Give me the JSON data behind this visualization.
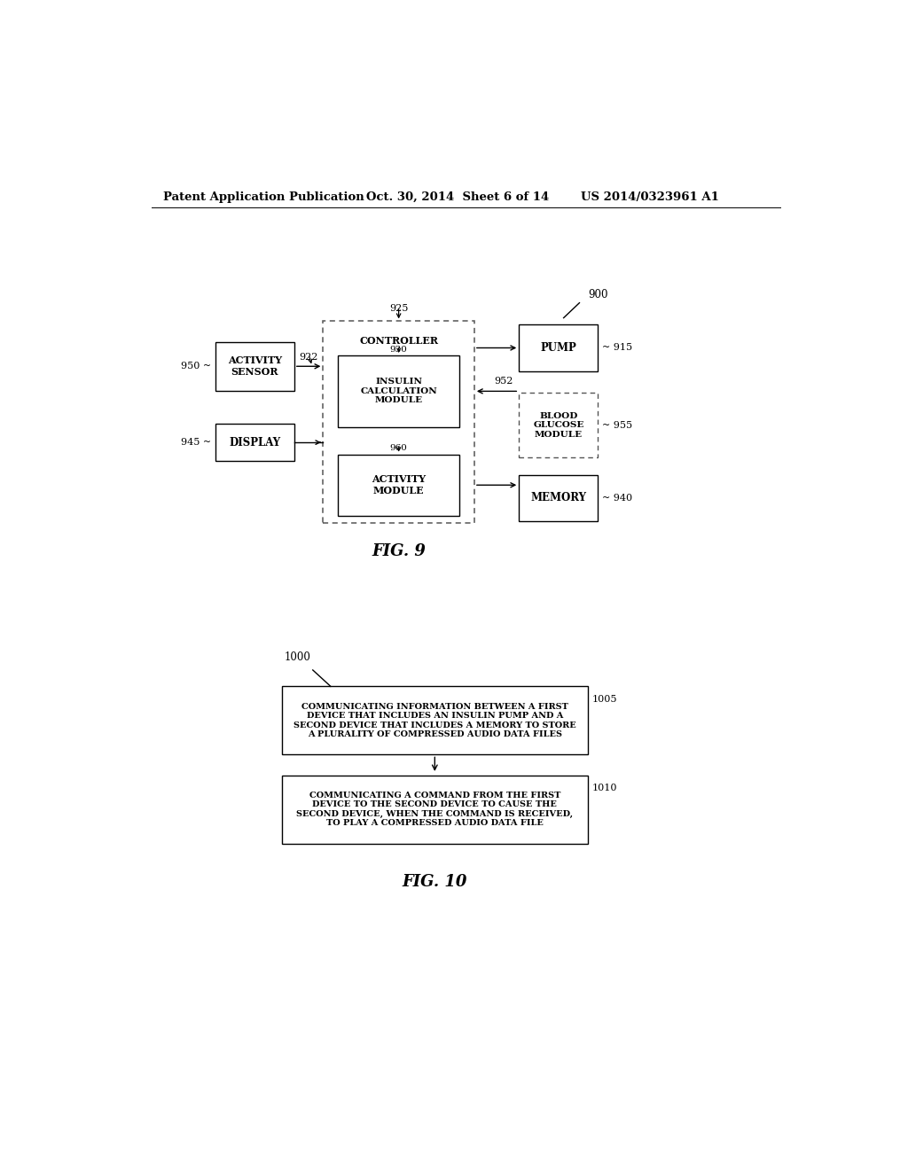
{
  "bg_color": "#ffffff",
  "header_left": "Patent Application Publication",
  "header_mid": "Oct. 30, 2014  Sheet 6 of 14",
  "header_right": "US 2014/0323961 A1",
  "fig9_label": "FIG. 9",
  "fig10_label": "FIG. 10",
  "ref_900": "900",
  "ref_925": "925",
  "ref_930": "930",
  "ref_960": "960",
  "ref_915": "915",
  "ref_940": "940",
  "ref_950": "950",
  "ref_945": "945",
  "ref_922": "922",
  "ref_952": "952",
  "ref_955": "955",
  "lbl_controller": "CONTROLLER",
  "lbl_insulin": "INSULIN\nCALCULATION\nMODULE",
  "lbl_activity_mod": "ACTIVITY\nMODULE",
  "lbl_pump": "PUMP",
  "lbl_blood": "BLOOD\nGLUCOSE\nMODULE",
  "lbl_memory": "MEMORY",
  "lbl_act_sensor": "ACTIVITY\nSENSOR",
  "lbl_display": "DISPLAY",
  "ref_1000": "1000",
  "ref_1005": "1005",
  "ref_1010": "1010",
  "lbl_box1005": "COMMUNICATING INFORMATION BETWEEN A FIRST\nDEVICE THAT INCLUDES AN INSULIN PUMP AND A\nSECOND DEVICE THAT INCLUDES A MEMORY TO STORE\nA PLURALITY OF COMPRESSED AUDIO DATA FILES",
  "lbl_box1010": "COMMUNICATING A COMMAND FROM THE FIRST\nDEVICE TO THE SECOND DEVICE TO CAUSE THE\nSECOND DEVICE, WHEN THE COMMAND IS RECEIVED,\nTO PLAY A COMPRESSED AUDIO DATA FILE"
}
